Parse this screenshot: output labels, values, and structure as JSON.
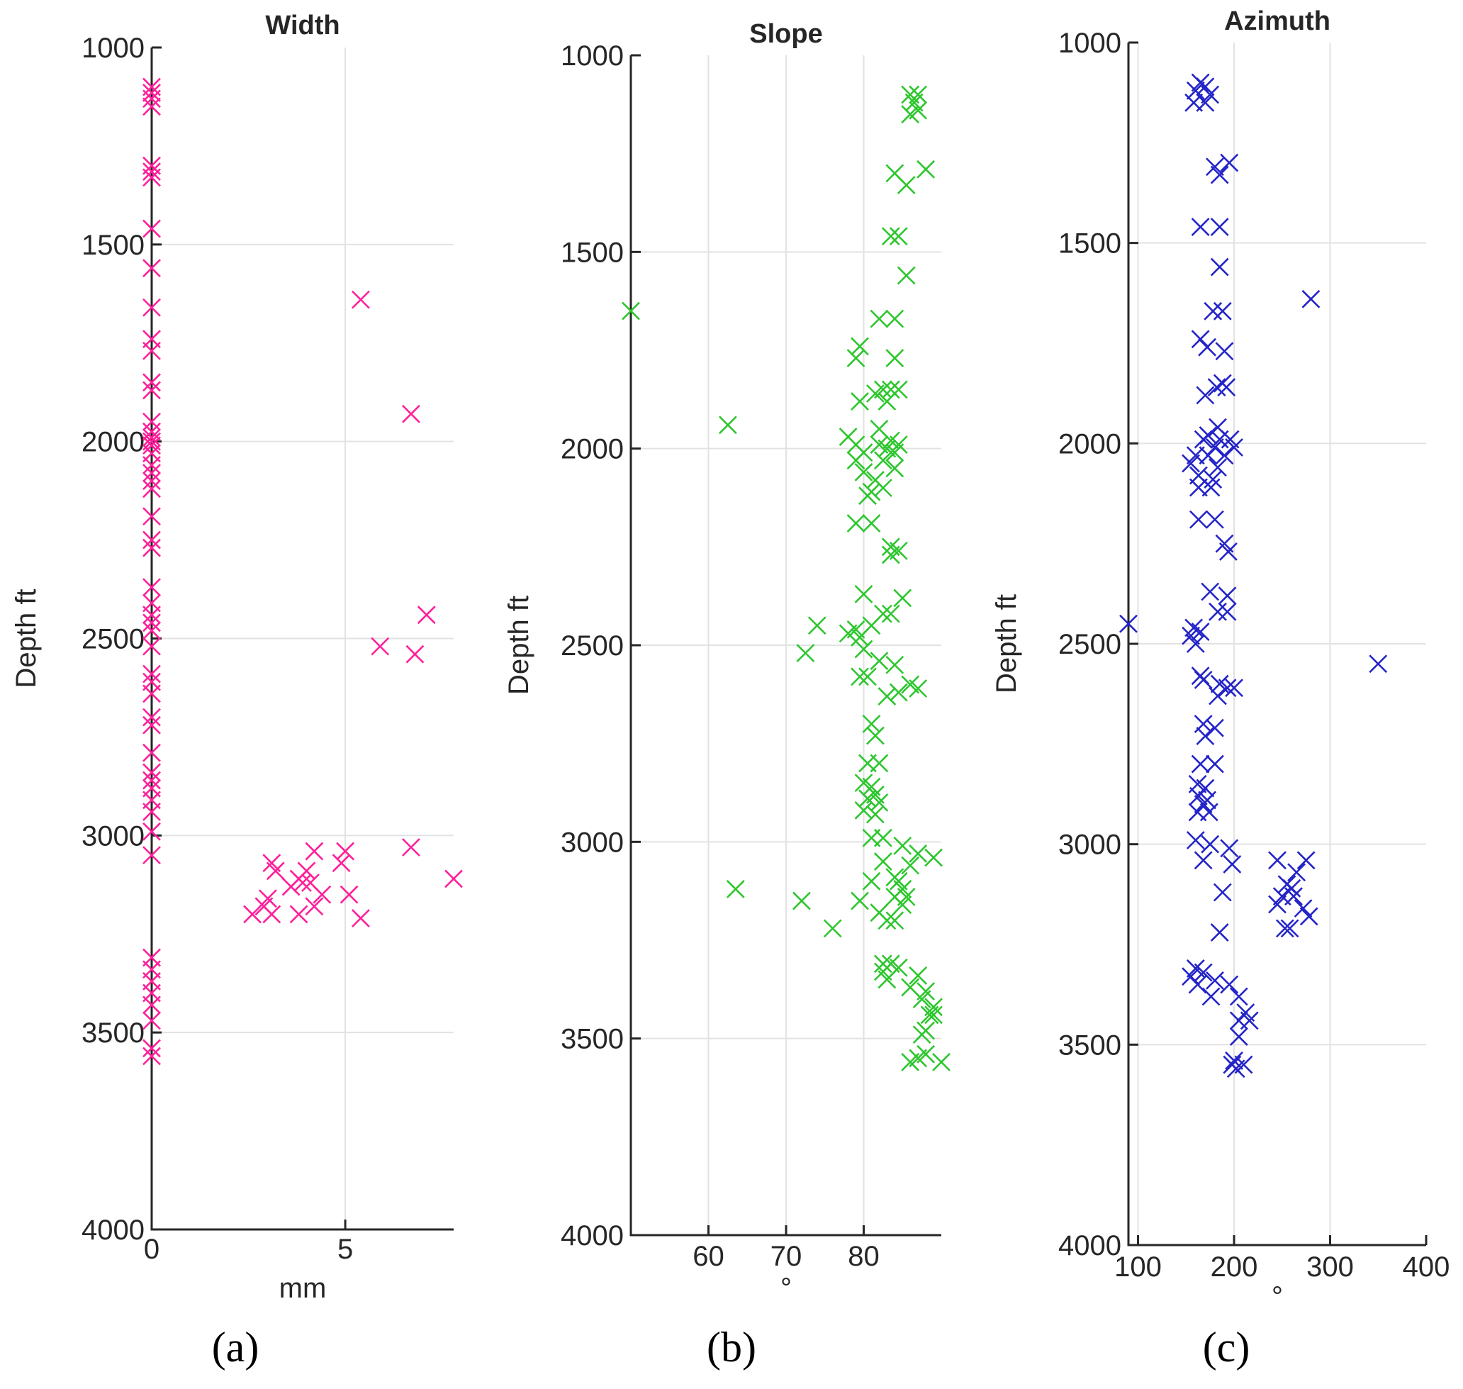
{
  "panel_labels": [
    "(a)",
    "(b)",
    "(c)"
  ],
  "colors": {
    "width": "#ff1f9a",
    "slope": "#2ec62e",
    "azimuth": "#2424c8"
  },
  "chart_data": [
    {
      "type": "scatter",
      "title": "Width",
      "xlabel": "mm",
      "ylabel": "Depth ft",
      "xlim": [
        0,
        7.8
      ],
      "ylim": [
        1000,
        4000
      ],
      "y_reversed": true,
      "xticks": [
        0,
        5
      ],
      "yticks": [
        1000,
        1500,
        2000,
        2500,
        3000,
        3500,
        4000
      ],
      "grid": true,
      "marker": "x",
      "points": [
        [
          0,
          1100
        ],
        [
          0,
          1115
        ],
        [
          0,
          1130
        ],
        [
          0,
          1150
        ],
        [
          0,
          1300
        ],
        [
          0,
          1315
        ],
        [
          0,
          1330
        ],
        [
          0,
          1460
        ],
        [
          0,
          1560
        ],
        [
          0,
          1660
        ],
        [
          0,
          1740
        ],
        [
          0,
          1770
        ],
        [
          0,
          1850
        ],
        [
          0,
          1870
        ],
        [
          0,
          1950
        ],
        [
          0,
          1975
        ],
        [
          0,
          1990
        ],
        [
          0,
          2000
        ],
        [
          0,
          2010
        ],
        [
          0,
          2030
        ],
        [
          0,
          2060
        ],
        [
          0,
          2080
        ],
        [
          0,
          2100
        ],
        [
          0,
          2120
        ],
        [
          0,
          2190
        ],
        [
          0,
          2250
        ],
        [
          0,
          2270
        ],
        [
          0,
          2370
        ],
        [
          0,
          2410
        ],
        [
          0,
          2440
        ],
        [
          0,
          2460
        ],
        [
          0,
          2480
        ],
        [
          0,
          2520
        ],
        [
          0,
          2590
        ],
        [
          0,
          2610
        ],
        [
          0,
          2640
        ],
        [
          0,
          2700
        ],
        [
          0,
          2720
        ],
        [
          0,
          2790
        ],
        [
          0,
          2840
        ],
        [
          0,
          2860
        ],
        [
          0,
          2880
        ],
        [
          0,
          2910
        ],
        [
          0,
          2940
        ],
        [
          0,
          2990
        ],
        [
          0,
          3050
        ],
        [
          0,
          3310
        ],
        [
          0,
          3340
        ],
        [
          0,
          3370
        ],
        [
          0,
          3400
        ],
        [
          0,
          3430
        ],
        [
          0,
          3470
        ],
        [
          0,
          3540
        ],
        [
          0,
          3560
        ],
        [
          5.4,
          1640
        ],
        [
          6.7,
          1930
        ],
        [
          7.1,
          2440
        ],
        [
          5.9,
          2520
        ],
        [
          6.8,
          2540
        ],
        [
          6.7,
          3030
        ],
        [
          7.8,
          3110
        ],
        [
          4.2,
          3040
        ],
        [
          5.0,
          3040
        ],
        [
          3.1,
          3070
        ],
        [
          3.2,
          3090
        ],
        [
          4.9,
          3070
        ],
        [
          4.0,
          3090
        ],
        [
          3.8,
          3110
        ],
        [
          3.6,
          3130
        ],
        [
          3.9,
          3120
        ],
        [
          4.1,
          3120
        ],
        [
          4.4,
          3150
        ],
        [
          5.1,
          3150
        ],
        [
          3.0,
          3160
        ],
        [
          4.2,
          3180
        ],
        [
          2.9,
          3180
        ],
        [
          2.6,
          3200
        ],
        [
          3.1,
          3200
        ],
        [
          3.8,
          3200
        ],
        [
          5.4,
          3210
        ]
      ]
    },
    {
      "type": "scatter",
      "title": "Slope",
      "xlabel": "°",
      "ylabel": "Depth ft",
      "xlim": [
        50,
        90
      ],
      "ylim": [
        1000,
        4000
      ],
      "y_reversed": true,
      "xticks": [
        60,
        70,
        80
      ],
      "yticks": [
        1000,
        1500,
        2000,
        2500,
        3000,
        3500,
        4000
      ],
      "grid": true,
      "marker": "x",
      "points": [
        [
          86,
          1100
        ],
        [
          87,
          1100
        ],
        [
          86.5,
          1120
        ],
        [
          86,
          1150
        ],
        [
          87,
          1140
        ],
        [
          84,
          1300
        ],
        [
          88,
          1290
        ],
        [
          85.5,
          1330
        ],
        [
          83.5,
          1460
        ],
        [
          84.5,
          1460
        ],
        [
          85.5,
          1560
        ],
        [
          50,
          1650
        ],
        [
          82,
          1670
        ],
        [
          84,
          1670
        ],
        [
          79.5,
          1740
        ],
        [
          79,
          1770
        ],
        [
          84,
          1770
        ],
        [
          82.5,
          1850
        ],
        [
          83.5,
          1850
        ],
        [
          84.5,
          1850
        ],
        [
          81.5,
          1860
        ],
        [
          79.5,
          1880
        ],
        [
          83,
          1880
        ],
        [
          62.5,
          1940
        ],
        [
          82,
          1950
        ],
        [
          83.5,
          1980
        ],
        [
          78,
          1970
        ],
        [
          79,
          1990
        ],
        [
          82,
          1990
        ],
        [
          84.5,
          1990
        ],
        [
          83,
          2000
        ],
        [
          80,
          2010
        ],
        [
          84,
          2010
        ],
        [
          79,
          2030
        ],
        [
          82.5,
          2030
        ],
        [
          84,
          2050
        ],
        [
          80,
          2060
        ],
        [
          81.5,
          2080
        ],
        [
          82.5,
          2100
        ],
        [
          81,
          2110
        ],
        [
          80.5,
          2120
        ],
        [
          79,
          2190
        ],
        [
          81,
          2190
        ],
        [
          83.5,
          2250
        ],
        [
          84.5,
          2260
        ],
        [
          83.5,
          2270
        ],
        [
          80,
          2370
        ],
        [
          85,
          2380
        ],
        [
          82.5,
          2420
        ],
        [
          83.5,
          2420
        ],
        [
          74,
          2450
        ],
        [
          79,
          2460
        ],
        [
          81,
          2450
        ],
        [
          78,
          2470
        ],
        [
          79.5,
          2480
        ],
        [
          80,
          2510
        ],
        [
          72.5,
          2520
        ],
        [
          82,
          2540
        ],
        [
          84,
          2550
        ],
        [
          79.5,
          2580
        ],
        [
          80.5,
          2580
        ],
        [
          86,
          2600
        ],
        [
          87,
          2610
        ],
        [
          83,
          2630
        ],
        [
          84.5,
          2620
        ],
        [
          81,
          2700
        ],
        [
          81.5,
          2730
        ],
        [
          80.5,
          2800
        ],
        [
          82,
          2800
        ],
        [
          80,
          2850
        ],
        [
          81,
          2860
        ],
        [
          81.5,
          2880
        ],
        [
          80.5,
          2890
        ],
        [
          82,
          2900
        ],
        [
          80,
          2920
        ],
        [
          81.5,
          2930
        ],
        [
          81,
          2990
        ],
        [
          82.5,
          2990
        ],
        [
          85,
          3010
        ],
        [
          89,
          3040
        ],
        [
          87,
          3030
        ],
        [
          82.5,
          3050
        ],
        [
          86,
          3060
        ],
        [
          84,
          3090
        ],
        [
          81,
          3100
        ],
        [
          84.5,
          3100
        ],
        [
          85,
          3120
        ],
        [
          63.5,
          3120
        ],
        [
          85.5,
          3140
        ],
        [
          84,
          3140
        ],
        [
          72,
          3150
        ],
        [
          79.5,
          3150
        ],
        [
          85,
          3160
        ],
        [
          82,
          3180
        ],
        [
          83,
          3200
        ],
        [
          84,
          3200
        ],
        [
          76,
          3220
        ],
        [
          82.5,
          3310
        ],
        [
          83.5,
          3310
        ],
        [
          84.5,
          3320
        ],
        [
          82.5,
          3330
        ],
        [
          83,
          3350
        ],
        [
          87,
          3340
        ],
        [
          86,
          3370
        ],
        [
          88,
          3380
        ],
        [
          87.5,
          3400
        ],
        [
          89,
          3420
        ],
        [
          88.5,
          3440
        ],
        [
          89,
          3440
        ],
        [
          88,
          3480
        ],
        [
          87.5,
          3490
        ],
        [
          88,
          3540
        ],
        [
          86,
          3560
        ],
        [
          87,
          3550
        ],
        [
          90,
          3560
        ]
      ]
    },
    {
      "type": "scatter",
      "title": "Azimuth",
      "xlabel": "°",
      "ylabel": "Depth ft",
      "xlim": [
        90,
        400
      ],
      "ylim": [
        1000,
        4000
      ],
      "y_reversed": true,
      "xticks": [
        100,
        200,
        300,
        400
      ],
      "yticks": [
        1000,
        1500,
        2000,
        2500,
        3000,
        3500,
        4000
      ],
      "grid": true,
      "marker": "x",
      "points": [
        [
          165,
          1100
        ],
        [
          170,
          1110
        ],
        [
          160,
          1120
        ],
        [
          175,
          1130
        ],
        [
          158,
          1150
        ],
        [
          170,
          1150
        ],
        [
          195,
          1300
        ],
        [
          180,
          1310
        ],
        [
          185,
          1330
        ],
        [
          165,
          1460
        ],
        [
          185,
          1460
        ],
        [
          185,
          1560
        ],
        [
          280,
          1640
        ],
        [
          178,
          1670
        ],
        [
          188,
          1670
        ],
        [
          165,
          1740
        ],
        [
          172,
          1760
        ],
        [
          190,
          1770
        ],
        [
          188,
          1850
        ],
        [
          182,
          1860
        ],
        [
          192,
          1860
        ],
        [
          170,
          1880
        ],
        [
          183,
          1960
        ],
        [
          173,
          1980
        ],
        [
          168,
          1990
        ],
        [
          185,
          1990
        ],
        [
          196,
          1990
        ],
        [
          180,
          2010
        ],
        [
          200,
          2010
        ],
        [
          160,
          2030
        ],
        [
          173,
          2030
        ],
        [
          190,
          2030
        ],
        [
          155,
          2050
        ],
        [
          183,
          2060
        ],
        [
          163,
          2080
        ],
        [
          178,
          2090
        ],
        [
          163,
          2110
        ],
        [
          176,
          2110
        ],
        [
          163,
          2190
        ],
        [
          180,
          2190
        ],
        [
          190,
          2250
        ],
        [
          194,
          2270
        ],
        [
          175,
          2370
        ],
        [
          193,
          2380
        ],
        [
          183,
          2420
        ],
        [
          193,
          2420
        ],
        [
          90,
          2450
        ],
        [
          158,
          2460
        ],
        [
          165,
          2470
        ],
        [
          155,
          2480
        ],
        [
          160,
          2500
        ],
        [
          350,
          2550
        ],
        [
          165,
          2580
        ],
        [
          168,
          2590
        ],
        [
          185,
          2600
        ],
        [
          200,
          2610
        ],
        [
          193,
          2610
        ],
        [
          183,
          2630
        ],
        [
          168,
          2700
        ],
        [
          180,
          2710
        ],
        [
          170,
          2730
        ],
        [
          165,
          2800
        ],
        [
          180,
          2800
        ],
        [
          162,
          2850
        ],
        [
          170,
          2860
        ],
        [
          163,
          2880
        ],
        [
          172,
          2890
        ],
        [
          168,
          2900
        ],
        [
          162,
          2920
        ],
        [
          174,
          2920
        ],
        [
          160,
          2990
        ],
        [
          175,
          3000
        ],
        [
          195,
          3010
        ],
        [
          245,
          3040
        ],
        [
          275,
          3040
        ],
        [
          168,
          3040
        ],
        [
          198,
          3050
        ],
        [
          265,
          3070
        ],
        [
          255,
          3100
        ],
        [
          260,
          3110
        ],
        [
          250,
          3130
        ],
        [
          262,
          3130
        ],
        [
          245,
          3150
        ],
        [
          272,
          3160
        ],
        [
          278,
          3180
        ],
        [
          188,
          3120
        ],
        [
          185,
          3220
        ],
        [
          258,
          3210
        ],
        [
          253,
          3210
        ],
        [
          160,
          3310
        ],
        [
          168,
          3320
        ],
        [
          155,
          3330
        ],
        [
          180,
          3340
        ],
        [
          195,
          3350
        ],
        [
          162,
          3350
        ],
        [
          205,
          3380
        ],
        [
          176,
          3380
        ],
        [
          212,
          3420
        ],
        [
          205,
          3440
        ],
        [
          216,
          3440
        ],
        [
          205,
          3480
        ],
        [
          200,
          3540
        ],
        [
          198,
          3550
        ],
        [
          210,
          3550
        ],
        [
          202,
          3560
        ]
      ]
    }
  ]
}
